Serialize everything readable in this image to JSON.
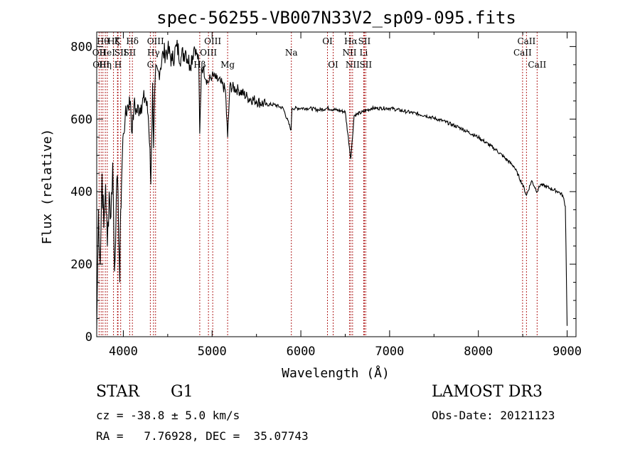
{
  "chart_data": {
    "type": "line",
    "title": "spec-56255-VB007N33V2_sp09-095.fits",
    "xlabel": "Wavelength (Å)",
    "ylabel": "Flux (relative)",
    "xlim": [
      3700,
      9100
    ],
    "ylim": [
      0,
      840
    ],
    "xticks": [
      4000,
      5000,
      6000,
      7000,
      8000,
      9000
    ],
    "xtick_labels": [
      "4000",
      "5000",
      "6000",
      "7000",
      "8000",
      "9000"
    ],
    "yticks": [
      0,
      200,
      400,
      600,
      800
    ],
    "ytick_labels": [
      "0",
      "200",
      "400",
      "600",
      "800"
    ],
    "grid": false,
    "series": [
      {
        "name": "spectrum",
        "x": [
          3700,
          3720,
          3740,
          3760,
          3780,
          3800,
          3820,
          3840,
          3860,
          3880,
          3900,
          3920,
          3940,
          3960,
          3970,
          3985,
          4000,
          4020,
          4050,
          4080,
          4100,
          4120,
          4150,
          4200,
          4250,
          4280,
          4300,
          4310,
          4330,
          4340,
          4360,
          4400,
          4450,
          4500,
          4550,
          4600,
          4650,
          4700,
          4750,
          4800,
          4850,
          4861,
          4880,
          4900,
          4950,
          5000,
          5050,
          5100,
          5150,
          5175,
          5200,
          5300,
          5400,
          5500,
          5600,
          5700,
          5800,
          5890,
          5900,
          6000,
          6100,
          6200,
          6300,
          6400,
          6500,
          6563,
          6600,
          6700,
          6800,
          6900,
          7000,
          7200,
          7400,
          7600,
          7800,
          8000,
          8200,
          8400,
          8498,
          8542,
          8600,
          8662,
          8700,
          8800,
          8900,
          8950,
          8980,
          9000
        ],
        "values": [
          20,
          350,
          200,
          450,
          300,
          420,
          250,
          400,
          330,
          480,
          180,
          380,
          400,
          150,
          350,
          470,
          560,
          600,
          640,
          650,
          560,
          640,
          620,
          640,
          660,
          610,
          520,
          420,
          700,
          520,
          720,
          730,
          780,
          790,
          760,
          800,
          770,
          790,
          750,
          800,
          760,
          560,
          740,
          740,
          700,
          720,
          710,
          700,
          680,
          550,
          690,
          680,
          660,
          650,
          640,
          640,
          630,
          570,
          630,
          630,
          630,
          625,
          630,
          625,
          620,
          490,
          610,
          620,
          630,
          630,
          630,
          620,
          610,
          595,
          575,
          550,
          515,
          470,
          420,
          390,
          430,
          400,
          420,
          410,
          400,
          390,
          360,
          30
        ]
      }
    ],
    "line_labels": [
      {
        "x": 3727,
        "label": "OII",
        "row": 2
      },
      {
        "x": 3750,
        "label": "OIII",
        "row": 3
      },
      {
        "x": 3770,
        "label": "Hθ",
        "row": 1
      },
      {
        "x": 3797,
        "label": "Hη",
        "row": 3
      },
      {
        "x": 3819,
        "label": "HeI",
        "row": 2
      },
      {
        "x": 3889,
        "label": "Hζ",
        "row": 1
      },
      {
        "x": 3934,
        "label": "K",
        "row": 1
      },
      {
        "x": 3940,
        "label": "H",
        "row": 3
      },
      {
        "x": 3970,
        "label": "SII",
        "row": 2
      },
      {
        "x": 4102,
        "label": "Hδ",
        "row": 1
      },
      {
        "x": 4072,
        "label": "SII",
        "row": 2
      },
      {
        "x": 4304,
        "label": "G",
        "row": 3
      },
      {
        "x": 4340,
        "label": "Hγ",
        "row": 2
      },
      {
        "x": 4363,
        "label": "OIII",
        "row": 1
      },
      {
        "x": 4861,
        "label": "Hβ",
        "row": 3
      },
      {
        "x": 4959,
        "label": "OIII",
        "row": 2
      },
      {
        "x": 5007,
        "label": "OIII",
        "row": 1
      },
      {
        "x": 5175,
        "label": "Mg",
        "row": 3
      },
      {
        "x": 5893,
        "label": "Na",
        "row": 2
      },
      {
        "x": 6300,
        "label": "OI",
        "row": 1
      },
      {
        "x": 6364,
        "label": "OI",
        "row": 3
      },
      {
        "x": 6548,
        "label": "NII",
        "row": 2
      },
      {
        "x": 6563,
        "label": "Hα",
        "row": 1
      },
      {
        "x": 6583,
        "label": "NII",
        "row": 3
      },
      {
        "x": 6708,
        "label": "Li",
        "row": 2
      },
      {
        "x": 6716,
        "label": "SII",
        "row": 1
      },
      {
        "x": 6731,
        "label": "SII",
        "row": 3
      },
      {
        "x": 8498,
        "label": "CaII",
        "row": 2
      },
      {
        "x": 8542,
        "label": "CaII",
        "row": 1
      },
      {
        "x": 8662,
        "label": "CaII",
        "row": 3
      }
    ],
    "line_marker_color": "#b22222",
    "line_color": "#000000"
  },
  "info": {
    "object_class": "STAR",
    "subclass": "G1",
    "survey": "LAMOST DR3",
    "redshift_text": "cz = -38.8 ± 5.0 km/s",
    "obs_date_text": "Obs-Date: 20121123",
    "coords_text": "RA =   7.76928, DEC =  35.07743"
  }
}
